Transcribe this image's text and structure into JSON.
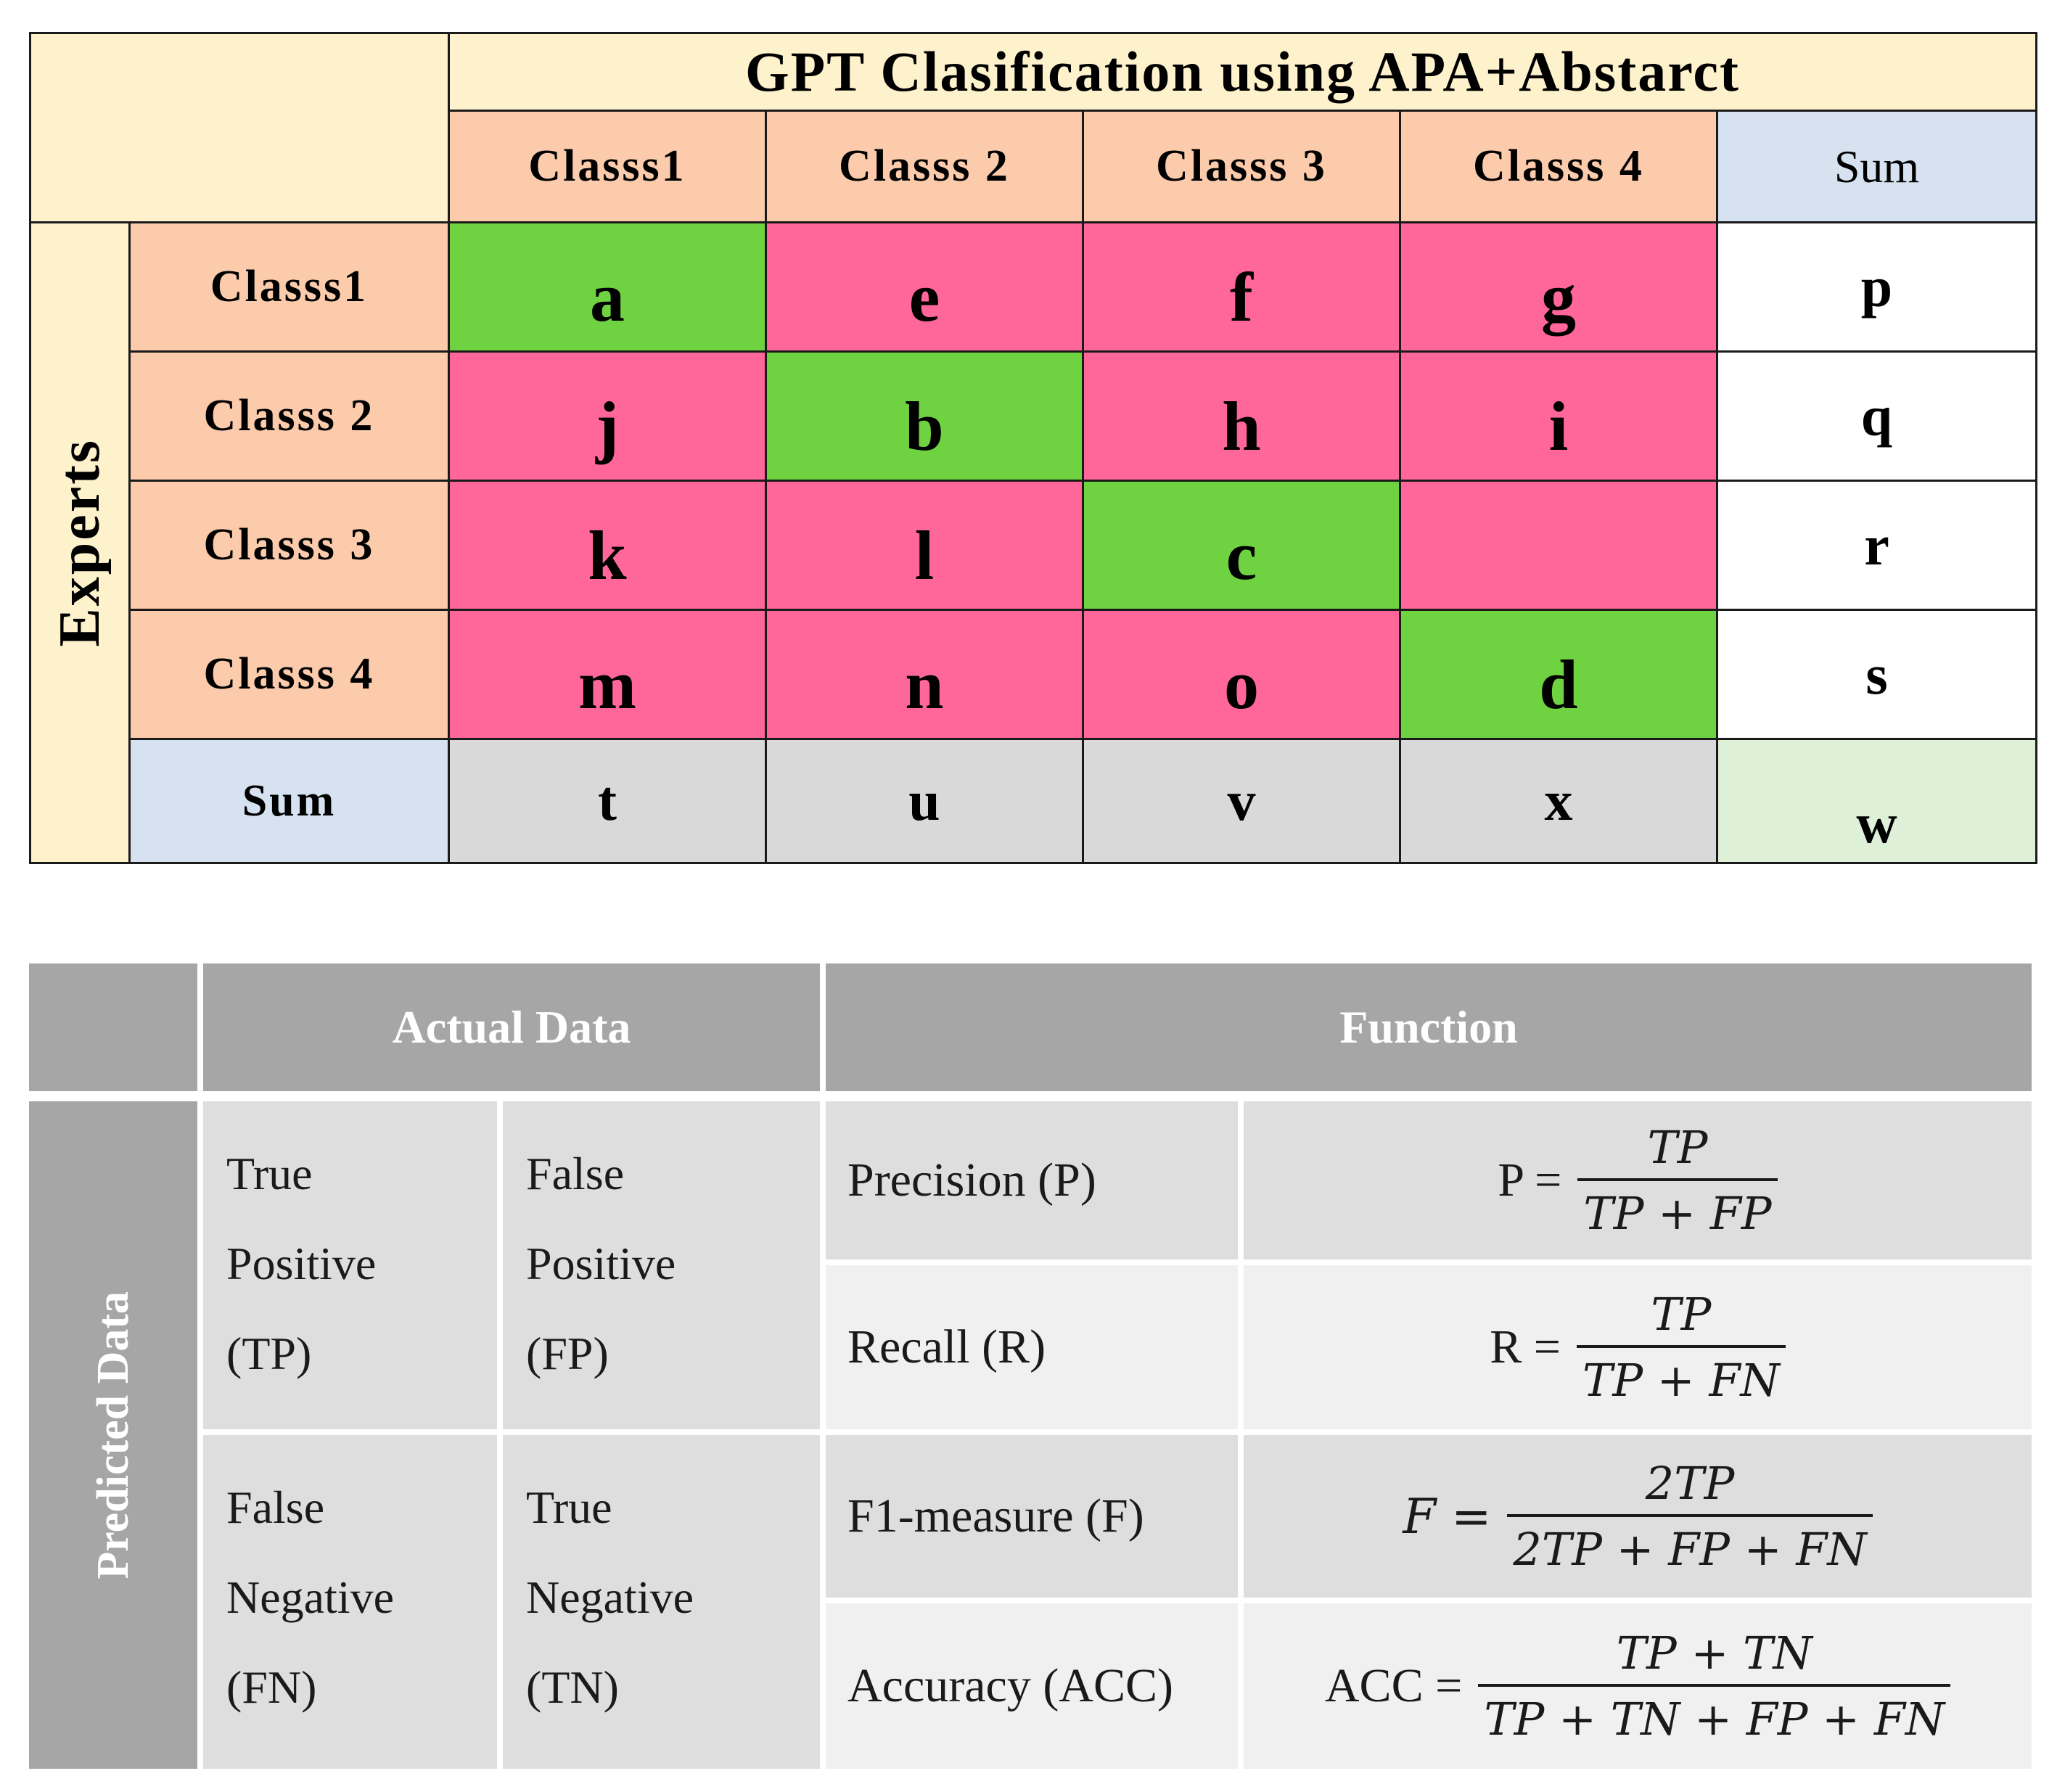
{
  "matrix": {
    "title": "GPT Clasification using APA+Abstarct",
    "side_label": "Experts",
    "col_headers": [
      "Classs1",
      "Classs 2",
      "Classs 3",
      "Classs 4"
    ],
    "row_headers": [
      "Classs1",
      "Classs 2",
      "Classs 3",
      "Classs 4"
    ],
    "sum_label_col": "Sum",
    "sum_label_row": "Sum",
    "cells": [
      [
        "a",
        "e",
        "f",
        "g"
      ],
      [
        "j",
        "b",
        "h",
        "i"
      ],
      [
        "k",
        "l",
        "c",
        ""
      ],
      [
        "m",
        "n",
        "o",
        "d"
      ]
    ],
    "row_sums": [
      "p",
      "q",
      "r",
      "s"
    ],
    "col_sums": [
      "t",
      "u",
      "v",
      "x"
    ],
    "total": "w",
    "colors": {
      "correct": "#6fd341",
      "incorrect": "#ff6699"
    }
  },
  "metrics": {
    "header_actual": "Actual Data",
    "header_function": "Function",
    "side_label": "Predicted Data",
    "tp": [
      "True",
      "Positive",
      "(TP)"
    ],
    "fp": [
      "False",
      "Positive",
      "(FP)"
    ],
    "fn": [
      "False",
      "Negative",
      "(FN)"
    ],
    "tn": [
      "True",
      "Negative",
      "(TN)"
    ],
    "rows": [
      {
        "label": "Precision (P)",
        "lhs": "P =",
        "num": "TP",
        "den": "TP + FP"
      },
      {
        "label": "Recall (R)",
        "lhs": "R =",
        "num": "TP",
        "den": "TP + FN"
      },
      {
        "label": "F1-measure (F)",
        "lhs": "F =",
        "num": "2TP",
        "den": "2TP + FP + FN"
      },
      {
        "label": "Accuracy (ACC)",
        "lhs": "ACC =",
        "num": "TP + TN",
        "den": "TP + TN + FP + FN"
      }
    ]
  }
}
